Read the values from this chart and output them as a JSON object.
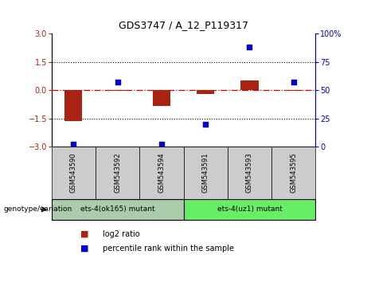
{
  "title": "GDS3747 / A_12_P119317",
  "samples": [
    "GSM543590",
    "GSM543592",
    "GSM543594",
    "GSM543591",
    "GSM543593",
    "GSM543595"
  ],
  "log2_ratio": [
    -1.65,
    -0.05,
    -0.85,
    -0.2,
    0.5,
    -0.02
  ],
  "percentile_rank": [
    2,
    57,
    2,
    20,
    88,
    57
  ],
  "ylim_left": [
    -3,
    3
  ],
  "ylim_right": [
    0,
    100
  ],
  "yticks_left": [
    -3,
    -1.5,
    0,
    1.5,
    3
  ],
  "yticks_right": [
    0,
    25,
    50,
    75,
    100
  ],
  "hlines": [
    -1.5,
    1.5
  ],
  "bar_color": "#aa2211",
  "dot_color": "#0000cc",
  "zero_line_color": "#cc0000",
  "bg_color": "#ffffff",
  "plot_bg": "#ffffff",
  "group1_label": "ets-4(ok165) mutant",
  "group2_label": "ets-4(uz1) mutant",
  "group1_color": "#aaccaa",
  "group2_color": "#66ee66",
  "header_color": "#cccccc",
  "legend_log2": "log2 ratio",
  "legend_pct": "percentile rank within the sample",
  "genotype_label": "genotype/variation"
}
